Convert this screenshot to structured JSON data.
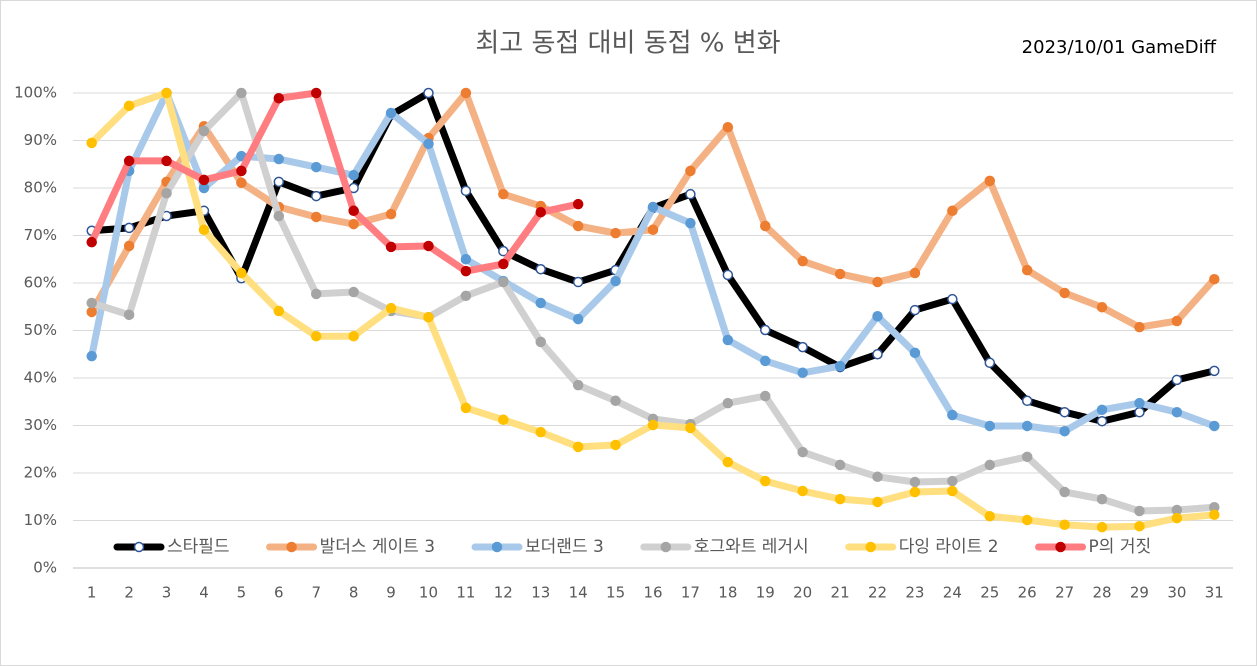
{
  "chart_data": {
    "type": "line",
    "title": "최고 동접 대비 동접 % 변화",
    "annotation": "2023/10/01 GameDiff",
    "categories": [
      "1",
      "2",
      "3",
      "4",
      "5",
      "6",
      "7",
      "8",
      "9",
      "10",
      "11",
      "12",
      "13",
      "14",
      "15",
      "16",
      "17",
      "18",
      "19",
      "20",
      "21",
      "22",
      "23",
      "24",
      "25",
      "26",
      "27",
      "28",
      "29",
      "30",
      "31"
    ],
    "ylim": [
      0,
      100
    ],
    "yticks": [
      {
        "value": 0,
        "label": "0%"
      },
      {
        "value": 10,
        "label": "10%"
      },
      {
        "value": 20,
        "label": "20%"
      },
      {
        "value": 30,
        "label": "30%"
      },
      {
        "value": 40,
        "label": "40%"
      },
      {
        "value": 50,
        "label": "50%"
      },
      {
        "value": 60,
        "label": "60%"
      },
      {
        "value": 70,
        "label": "70%"
      },
      {
        "value": 80,
        "label": "80%"
      },
      {
        "value": 90,
        "label": "90%"
      },
      {
        "value": 100,
        "label": "100%"
      }
    ],
    "grid": true,
    "legend": "bottom",
    "series": [
      {
        "name": "스타필드",
        "color": "#000000",
        "marker_color": "#ffffff",
        "marker_stroke": "#2f5597",
        "values": [
          71,
          71.6,
          74.1,
          75.2,
          61,
          81.3,
          78.3,
          80,
          95.4,
          100,
          79.4,
          66.7,
          62.9,
          60.2,
          62.7,
          75.8,
          78.7,
          61.7,
          50.1,
          46.5,
          42.3,
          45,
          54.3,
          56.6,
          43.2,
          35.2,
          32.8,
          30.9,
          32.8,
          39.6,
          41.5
        ]
      },
      {
        "name": "발더스 게이트 3",
        "color": "#f4b183",
        "marker_color": "#ed7d31",
        "marker_stroke": "#ed7d31",
        "values": [
          53.9,
          67.8,
          81.3,
          93,
          81.1,
          76,
          73.9,
          72.4,
          74.5,
          90.5,
          100,
          78.7,
          76.2,
          72,
          70.5,
          71.2,
          83.6,
          92.8,
          72,
          64.6,
          61.9,
          60.2,
          62.1,
          75.2,
          81.5,
          62.7,
          57.9,
          54.9,
          50.7,
          52,
          60.8
        ]
      },
      {
        "name": "보더랜드 3",
        "color": "#a9c9ea",
        "marker_color": "#5b9bd5",
        "marker_stroke": "#5b9bd5",
        "values": [
          44.6,
          83.6,
          100,
          80,
          86.7,
          86.1,
          84.4,
          82.7,
          95.8,
          89.3,
          65,
          60.4,
          55.8,
          52.4,
          60.4,
          76,
          72.6,
          48,
          43.6,
          41.1,
          42.5,
          53,
          45.3,
          32.2,
          29.9,
          29.9,
          28.8,
          33.3,
          34.7,
          32.8,
          29.9
        ]
      },
      {
        "name": "호그와트 레거시",
        "color": "#d0d0d0",
        "marker_color": "#a5a5a5",
        "marker_stroke": "#a5a5a5",
        "values": [
          55.8,
          53.3,
          78.9,
          92,
          100,
          74.1,
          57.7,
          58.1,
          54.1,
          52.8,
          57.3,
          60.2,
          47.6,
          38.5,
          35.2,
          31.4,
          30.3,
          34.7,
          36.2,
          24.4,
          21.7,
          19.2,
          18.1,
          18.3,
          21.7,
          23.4,
          16,
          14.5,
          12,
          12.2,
          12.8
        ]
      },
      {
        "name": "다잉 라이트 2",
        "color": "#ffdf7f",
        "marker_color": "#ffc000",
        "marker_stroke": "#ffc000",
        "values": [
          89.5,
          97.3,
          100,
          71.2,
          62.1,
          54.1,
          48.8,
          48.8,
          54.7,
          52.8,
          33.7,
          31.2,
          28.6,
          25.5,
          25.9,
          30.1,
          29.5,
          22.3,
          18.3,
          16.2,
          14.5,
          13.9,
          16,
          16.2,
          10.9,
          10.1,
          9.1,
          8.6,
          8.8,
          10.5,
          11.2
        ]
      },
      {
        "name": "P의 거짓",
        "color": "#ff7c80",
        "marker_color": "#c00000",
        "marker_stroke": "#c00000",
        "values": [
          68.6,
          85.7,
          85.7,
          81.7,
          83.6,
          98.9,
          100,
          75.2,
          67.6,
          67.8,
          62.5,
          64,
          74.9,
          76.6,
          null,
          null,
          null,
          null,
          null,
          null,
          null,
          null,
          null,
          null,
          null,
          null,
          null,
          null,
          null,
          null,
          null
        ]
      }
    ]
  }
}
